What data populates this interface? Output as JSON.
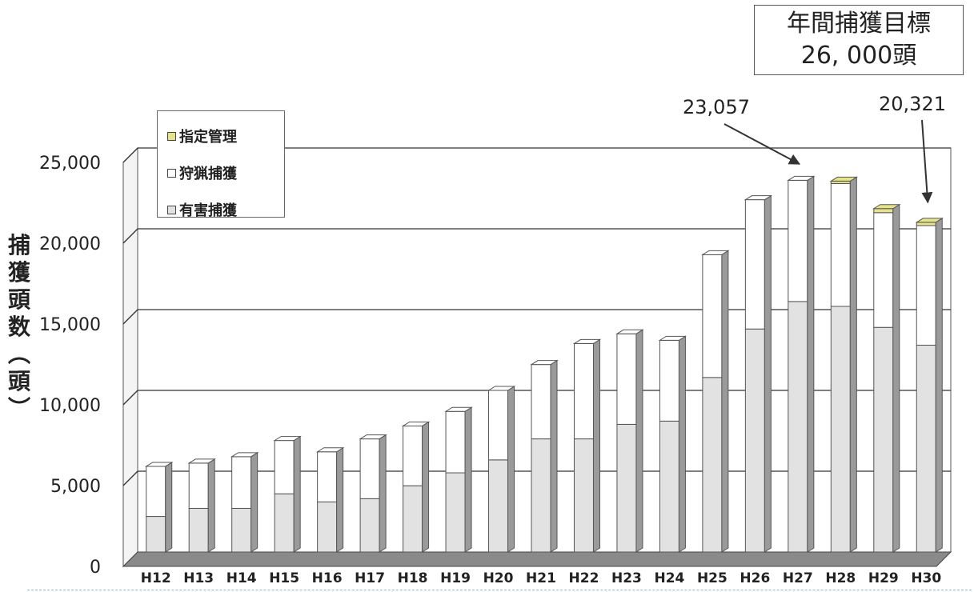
{
  "target": {
    "line1": "年間捕獲目標",
    "line2": "26, 000頭"
  },
  "colors": {
    "shitei": "#e6e38a",
    "shuryo": "#ffffff",
    "yugai": "#e2e2e2",
    "side": "#9a9a9a",
    "grid": "#333333",
    "floor": "#8a8a8a"
  },
  "chart_data": {
    "type": "bar",
    "stacked": true,
    "ylabel": "捕獲頭数（頭）",
    "ylim": [
      0,
      25000
    ],
    "yticks": [
      "0",
      "5,000",
      "10,000",
      "15,000",
      "20,000",
      "25,000"
    ],
    "categories": [
      "H12",
      "H13",
      "H14",
      "H15",
      "H16",
      "H17",
      "H18",
      "H19",
      "H20",
      "H21",
      "H22",
      "H23",
      "H24",
      "H25",
      "H26",
      "H27",
      "H28",
      "H29",
      "H30"
    ],
    "series": [
      {
        "name": "有害捕獲",
        "values": [
          2200,
          2700,
          2700,
          3600,
          3100,
          3300,
          4100,
          4900,
          5700,
          7000,
          7000,
          7900,
          8100,
          10800,
          13800,
          15500,
          15200,
          13900,
          12800
        ]
      },
      {
        "name": "狩猟捕獲",
        "values": [
          3100,
          2800,
          3200,
          3300,
          3100,
          3700,
          3700,
          3800,
          4300,
          4600,
          5900,
          5600,
          5000,
          7600,
          8000,
          7500,
          7600,
          7100,
          7400
        ]
      },
      {
        "name": "指定管理",
        "values": [
          0,
          0,
          0,
          0,
          0,
          0,
          0,
          0,
          0,
          0,
          0,
          0,
          0,
          0,
          0,
          0,
          150,
          250,
          200
        ]
      }
    ],
    "legend": [
      "指定管理",
      "狩猟捕獲",
      "有害捕獲"
    ],
    "annotations": [
      {
        "text": "23,057",
        "category": "H27"
      },
      {
        "text": "20,321",
        "category": "H30"
      }
    ],
    "grid": true,
    "legend_position": "top-left"
  }
}
